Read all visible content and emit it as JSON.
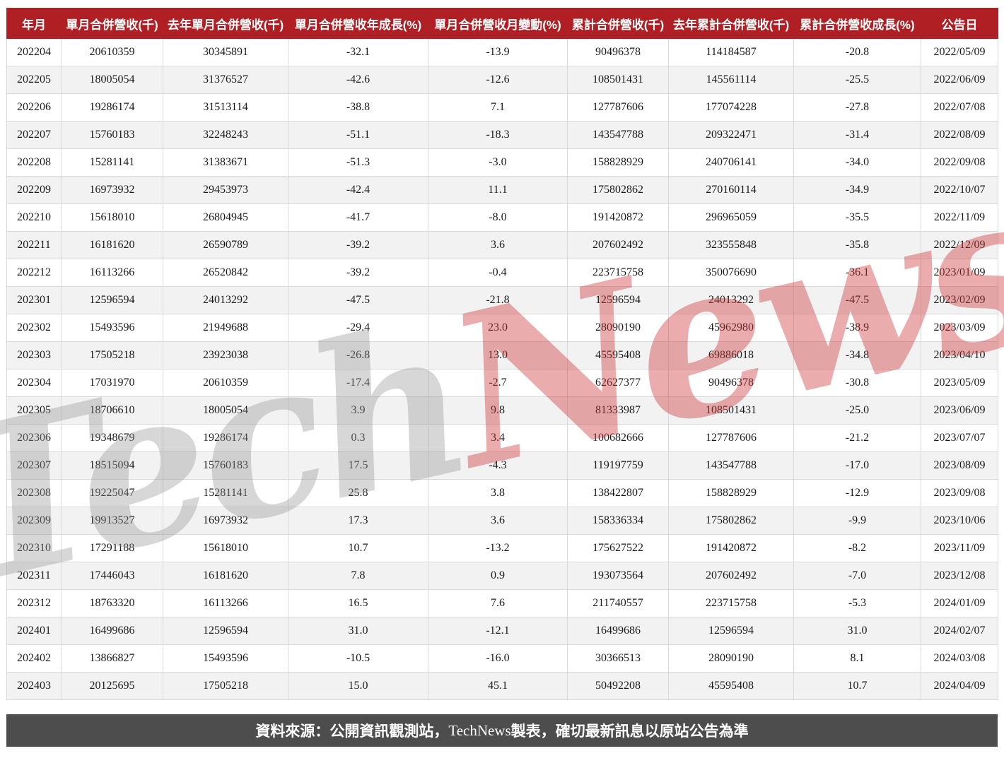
{
  "chart_data": {
    "type": "table",
    "columns": [
      "年月",
      "單月合併營收(千)",
      "去年單月合併營收(千)",
      "單月合併營收年成長(%)",
      "單月合併營收月變動(%)",
      "累計合併營收(千)",
      "去年累計合併營收(千)",
      "累計合併營收成長(%)",
      "公告日"
    ],
    "rows": [
      [
        "202204",
        "20610359",
        "30345891",
        "-32.1",
        "-13.9",
        "90496378",
        "114184587",
        "-20.8",
        "2022/05/09"
      ],
      [
        "202205",
        "18005054",
        "31376527",
        "-42.6",
        "-12.6",
        "108501431",
        "145561114",
        "-25.5",
        "2022/06/09"
      ],
      [
        "202206",
        "19286174",
        "31513114",
        "-38.8",
        "7.1",
        "127787606",
        "177074228",
        "-27.8",
        "2022/07/08"
      ],
      [
        "202207",
        "15760183",
        "32248243",
        "-51.1",
        "-18.3",
        "143547788",
        "209322471",
        "-31.4",
        "2022/08/09"
      ],
      [
        "202208",
        "15281141",
        "31383671",
        "-51.3",
        "-3.0",
        "158828929",
        "240706141",
        "-34.0",
        "2022/09/08"
      ],
      [
        "202209",
        "16973932",
        "29453973",
        "-42.4",
        "11.1",
        "175802862",
        "270160114",
        "-34.9",
        "2022/10/07"
      ],
      [
        "202210",
        "15618010",
        "26804945",
        "-41.7",
        "-8.0",
        "191420872",
        "296965059",
        "-35.5",
        "2022/11/09"
      ],
      [
        "202211",
        "16181620",
        "26590789",
        "-39.2",
        "3.6",
        "207602492",
        "323555848",
        "-35.8",
        "2022/12/09"
      ],
      [
        "202212",
        "16113266",
        "26520842",
        "-39.2",
        "-0.4",
        "223715758",
        "350076690",
        "-36.1",
        "2023/01/09"
      ],
      [
        "202301",
        "12596594",
        "24013292",
        "-47.5",
        "-21.8",
        "12596594",
        "24013292",
        "-47.5",
        "2023/02/09"
      ],
      [
        "202302",
        "15493596",
        "21949688",
        "-29.4",
        "23.0",
        "28090190",
        "45962980",
        "-38.9",
        "2023/03/09"
      ],
      [
        "202303",
        "17505218",
        "23923038",
        "-26.8",
        "13.0",
        "45595408",
        "69886018",
        "-34.8",
        "2023/04/10"
      ],
      [
        "202304",
        "17031970",
        "20610359",
        "-17.4",
        "-2.7",
        "62627377",
        "90496378",
        "-30.8",
        "2023/05/09"
      ],
      [
        "202305",
        "18706610",
        "18005054",
        "3.9",
        "9.8",
        "81333987",
        "108501431",
        "-25.0",
        "2023/06/09"
      ],
      [
        "202306",
        "19348679",
        "19286174",
        "0.3",
        "3.4",
        "100682666",
        "127787606",
        "-21.2",
        "2023/07/07"
      ],
      [
        "202307",
        "18515094",
        "15760183",
        "17.5",
        "-4.3",
        "119197759",
        "143547788",
        "-17.0",
        "2023/08/09"
      ],
      [
        "202308",
        "19225047",
        "15281141",
        "25.8",
        "3.8",
        "138422807",
        "158828929",
        "-12.9",
        "2023/09/08"
      ],
      [
        "202309",
        "19913527",
        "16973932",
        "17.3",
        "3.6",
        "158336334",
        "175802862",
        "-9.9",
        "2023/10/06"
      ],
      [
        "202310",
        "17291188",
        "15618010",
        "10.7",
        "-13.2",
        "175627522",
        "191420872",
        "-8.2",
        "2023/11/09"
      ],
      [
        "202311",
        "17446043",
        "16181620",
        "7.8",
        "0.9",
        "193073564",
        "207602492",
        "-7.0",
        "2023/12/08"
      ],
      [
        "202312",
        "18763320",
        "16113266",
        "16.5",
        "7.6",
        "211740557",
        "223715758",
        "-5.3",
        "2024/01/09"
      ],
      [
        "202401",
        "16499686",
        "12596594",
        "31.0",
        "-12.1",
        "16499686",
        "12596594",
        "31.0",
        "2024/02/07"
      ],
      [
        "202402",
        "13866827",
        "15493596",
        "-10.5",
        "-16.0",
        "30366513",
        "28090190",
        "8.1",
        "2024/03/08"
      ],
      [
        "202403",
        "20125695",
        "17505218",
        "15.0",
        "45.1",
        "50492208",
        "45595408",
        "10.7",
        "2024/04/09"
      ]
    ],
    "layout": {
      "zebra_striping": true,
      "first_data_row_background": "white",
      "alternate_row_background": "#f2f2f2"
    }
  },
  "watermark": {
    "part1": "Tech",
    "part2": "News"
  },
  "footer": {
    "prefix": "資料來源：公開資訊觀測站，",
    "brand": "TechNews",
    "suffix": " 製表，確切最新訊息以原站公告為準"
  },
  "colors": {
    "header_background": "#b01f24",
    "header_text": "#ffffff",
    "row_alt_background": "#f2f2f2",
    "cell_border": "#d9d9d9",
    "footer_background": "#4d4d4d",
    "footer_text": "#ffffff",
    "watermark_gray": "#969696",
    "watermark_red": "#ce3a3a"
  }
}
